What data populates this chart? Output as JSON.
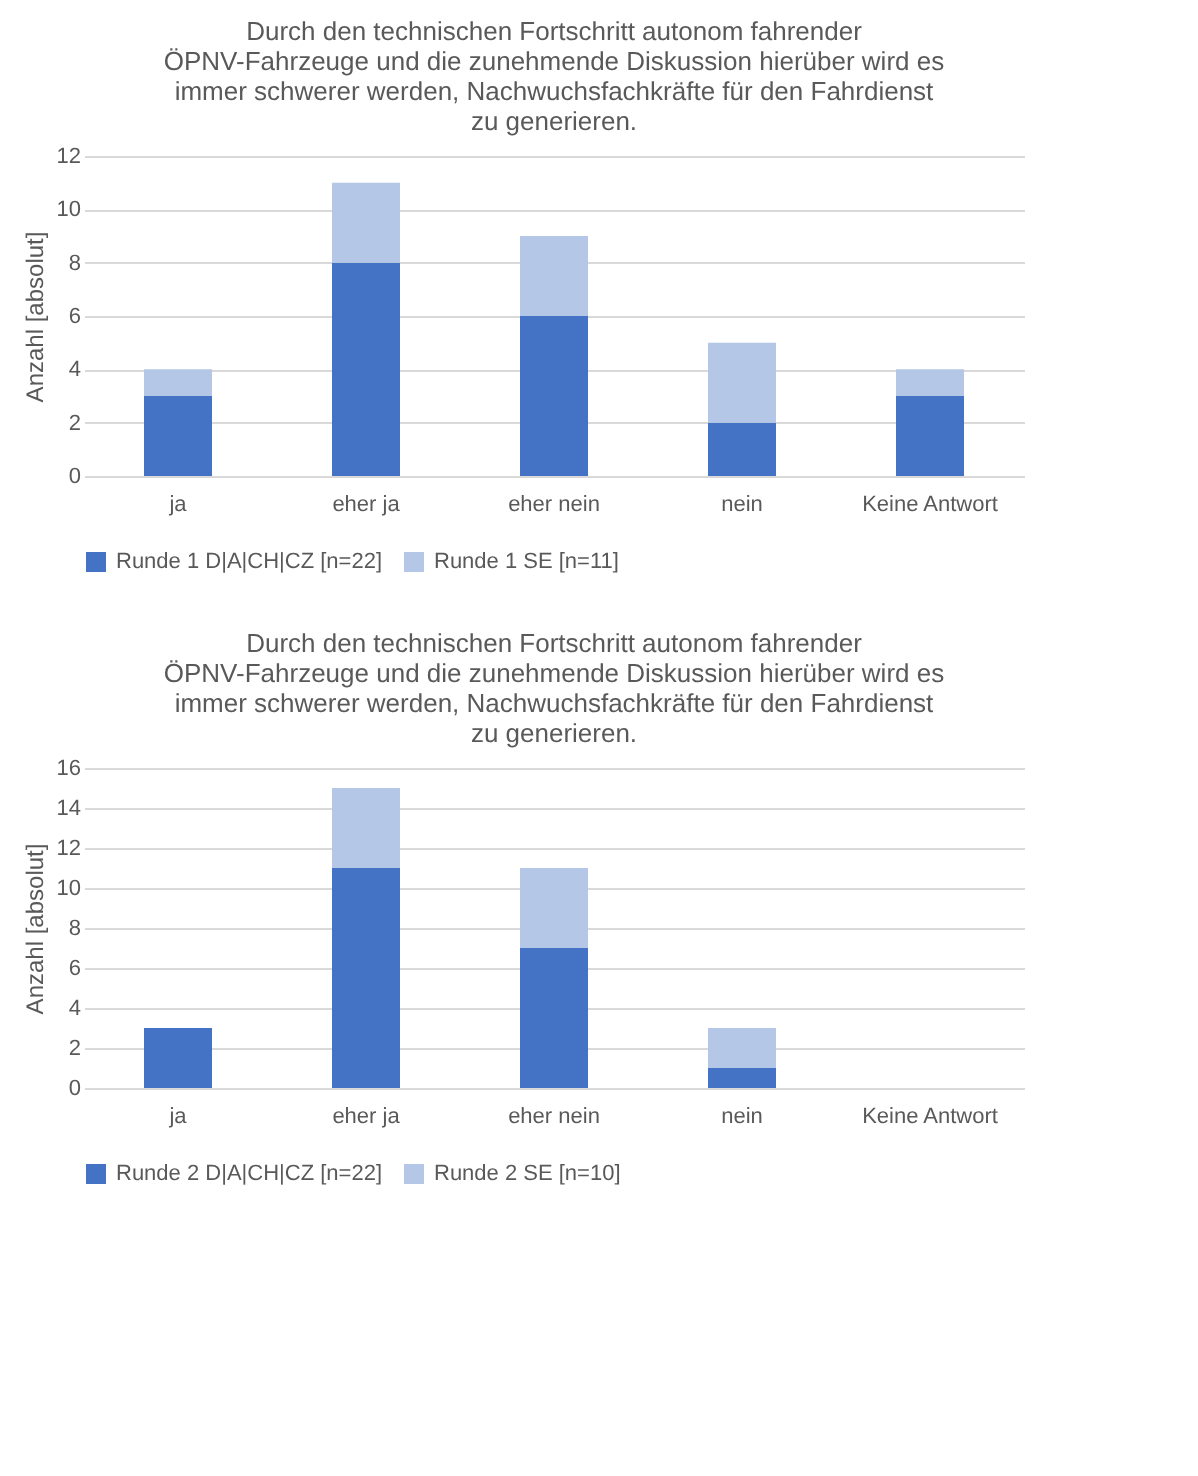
{
  "chart_data": [
    {
      "type": "bar",
      "title": "Durch den technischen Fortschritt autonom fahrender ÖPNV-Fahrzeuge und die zunehmende Diskussion hierüber wird es immer schwerer werden, Nachwuchsfachkräfte für den Fahrdienst zu generieren.",
      "ylabel": "Anzahl [absolut]",
      "categories": [
        "ja",
        "eher ja",
        "eher nein",
        "nein",
        "Keine Antwort"
      ],
      "stacked": true,
      "ylim": [
        0,
        12
      ],
      "yticks": [
        0,
        2,
        4,
        6,
        8,
        10,
        12
      ],
      "grid": "y",
      "legend": "bottom",
      "series": [
        {
          "name": "Runde 1 D|A|CH|CZ [n=22]",
          "color": "#4472c4",
          "values": [
            3,
            8,
            6,
            2,
            3
          ]
        },
        {
          "name": "Runde 1 SE [n=11]",
          "color": "#b4c7e7",
          "values": [
            1,
            3,
            3,
            3,
            1
          ]
        }
      ]
    },
    {
      "type": "bar",
      "title": "Durch den technischen Fortschritt autonom fahrender ÖPNV-Fahrzeuge und die zunehmende Diskussion hierüber wird es immer schwerer werden, Nachwuchsfachkräfte für den Fahrdienst zu generieren.",
      "ylabel": "Anzahl [absolut]",
      "categories": [
        "ja",
        "eher ja",
        "eher nein",
        "nein",
        "Keine Antwort"
      ],
      "stacked": true,
      "ylim": [
        0,
        16
      ],
      "yticks": [
        0,
        2,
        4,
        6,
        8,
        10,
        12,
        14,
        16
      ],
      "grid": "y",
      "legend": "bottom",
      "series": [
        {
          "name": "Runde 2 D|A|CH|CZ [n=22]",
          "color": "#4472c4",
          "values": [
            3,
            11,
            7,
            1,
            0
          ]
        },
        {
          "name": "Runde 2 SE [n=10]",
          "color": "#b4c7e7",
          "values": [
            0,
            4,
            4,
            2,
            0
          ]
        }
      ]
    }
  ]
}
